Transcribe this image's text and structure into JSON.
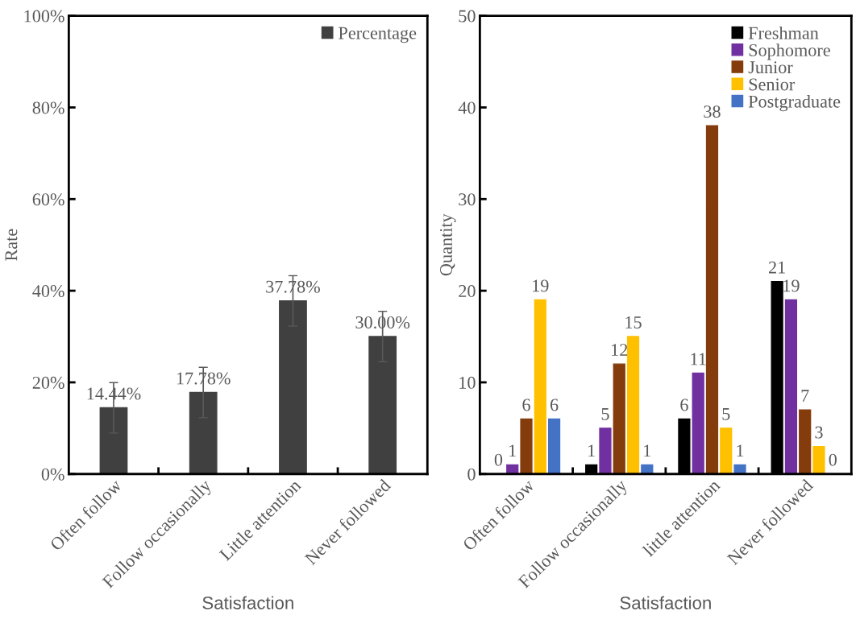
{
  "chart_data": [
    {
      "type": "bar",
      "categories": [
        "Often follow",
        "Follow occasionally",
        "Little attention",
        "Never followed"
      ],
      "xlabel": "Satisfaction",
      "ylabel": "Rate",
      "series": [
        {
          "name": "Percentage",
          "color": "#404040",
          "values": [
            14.44,
            17.78,
            37.78,
            30.0
          ],
          "errors": [
            5.5,
            5.5,
            5.5,
            5.5
          ],
          "value_labels": [
            "14.44%",
            "17.78%",
            "37.78%",
            "30.00%"
          ]
        }
      ],
      "ylim": [
        0,
        100
      ],
      "yticks": [
        {
          "value": 0,
          "label": "0%"
        },
        {
          "value": 20,
          "label": "20%"
        },
        {
          "value": 40,
          "label": "40%"
        },
        {
          "value": 60,
          "label": "60%"
        },
        {
          "value": 80,
          "label": "80%"
        },
        {
          "value": 100,
          "label": "100%"
        }
      ],
      "grid": false,
      "legend": "top right"
    },
    {
      "type": "bar",
      "categories": [
        "Often follow",
        "Follow occasionally",
        "little attention",
        "Never followed"
      ],
      "xlabel": "Satisfaction",
      "ylabel": "Quantity",
      "series": [
        {
          "name": "Freshman",
          "color": "#000000",
          "values": [
            0,
            1,
            6,
            21
          ]
        },
        {
          "name": "Sophomore",
          "color": "#7030a0",
          "values": [
            1,
            5,
            11,
            19
          ]
        },
        {
          "name": "Junior",
          "color": "#843c0c",
          "values": [
            6,
            12,
            38,
            7
          ]
        },
        {
          "name": "Senior",
          "color": "#ffc000",
          "values": [
            19,
            15,
            5,
            3
          ]
        },
        {
          "name": "Postgraduate",
          "color": "#4472c4",
          "values": [
            6,
            1,
            1,
            0
          ]
        }
      ],
      "ylim": [
        0,
        50
      ],
      "yticks": [
        0,
        10,
        20,
        30,
        40,
        50
      ],
      "data_labels": true,
      "grid": false,
      "legend": "top right"
    }
  ]
}
